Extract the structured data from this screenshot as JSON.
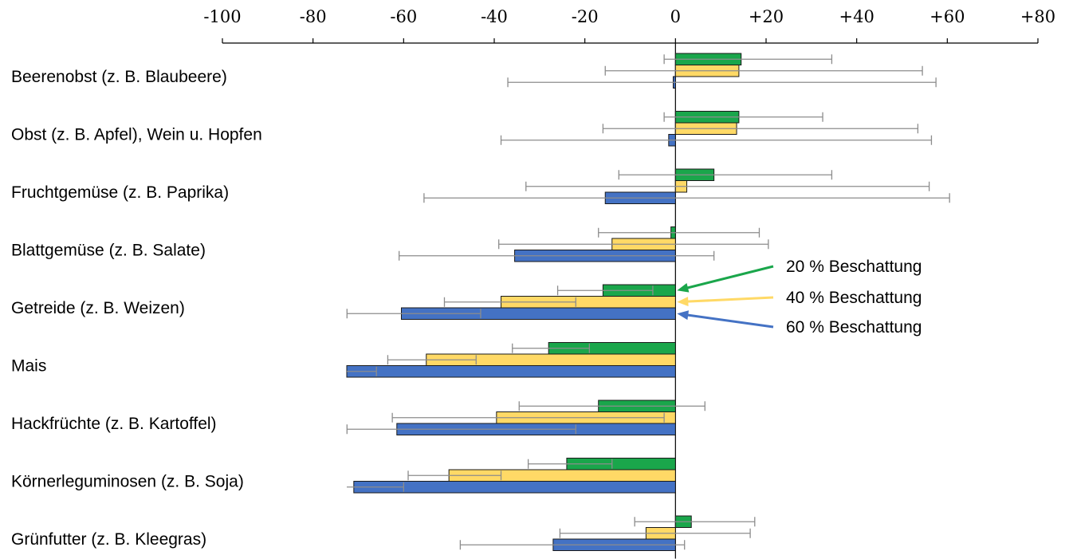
{
  "chart_data": {
    "type": "bar",
    "orientation": "horizontal",
    "xlim": [
      -100,
      80
    ],
    "x_tick_values": [
      -100,
      -80,
      -60,
      -40,
      -20,
      0,
      20,
      40,
      60,
      80
    ],
    "x_tick_labels": [
      "-100",
      "-80",
      "-60",
      "-40",
      "-20",
      "0",
      "+20",
      "+40",
      "+60",
      "+80"
    ],
    "x_axis_position": "top",
    "grid": false,
    "categories": [
      "Beerenobst (z. B. Blaubeere)",
      "Obst (z. B. Apfel), Wein u. Hopfen",
      "Fruchtgemüse (z. B. Paprika)",
      "Blattgemüse (z. B. Salate)",
      "Getreide (z. B. Weizen)",
      "Mais",
      "Hackfrüchte (z. B. Kartoffel)",
      "Körnerleguminosen (z. B. Soja)",
      "Grünfutter (z. B. Kleegras)"
    ],
    "series": [
      {
        "name": "20 % Beschattung",
        "color": "#1aa64b",
        "values": [
          14.5,
          14,
          8.5,
          -1,
          -16,
          -28,
          -17,
          -24,
          3.5
        ],
        "err_low": [
          -2.5,
          -2.5,
          -12.5,
          -17,
          -26,
          -36,
          -34.5,
          -32.5,
          -9
        ],
        "err_high": [
          34.5,
          32.5,
          34.5,
          18.5,
          -5,
          -19,
          6.5,
          -14,
          17.5
        ]
      },
      {
        "name": "40 % Beschattung",
        "color": "#ffd966",
        "values": [
          14,
          13.5,
          2.5,
          -14,
          -38.5,
          -55,
          -39.5,
          -50,
          -6.5
        ],
        "err_low": [
          -15.5,
          -16,
          -33,
          -39,
          -51,
          -63.5,
          -62.5,
          -59,
          -25.5
        ],
        "err_high": [
          54.5,
          53.5,
          56,
          20.5,
          -22,
          -44,
          -2.5,
          -38.5,
          16.5
        ]
      },
      {
        "name": "60 % Beschattung",
        "color": "#4472c4",
        "values": [
          -0.5,
          -1.5,
          -15.5,
          -35.5,
          -60.5,
          -73,
          -61.5,
          -71,
          -27
        ],
        "err_low": [
          -37,
          -38.5,
          -55.5,
          -61,
          -72.5,
          -73,
          -72.5,
          -73,
          -47.5
        ],
        "err_high": [
          57.5,
          56.5,
          60.5,
          8.5,
          -43,
          -66,
          -22,
          -60,
          2
        ]
      }
    ],
    "legend": {
      "placement": "right",
      "entries": [
        "20 % Beschattung",
        "40 % Beschattung",
        "60 % Beschattung"
      ]
    }
  }
}
